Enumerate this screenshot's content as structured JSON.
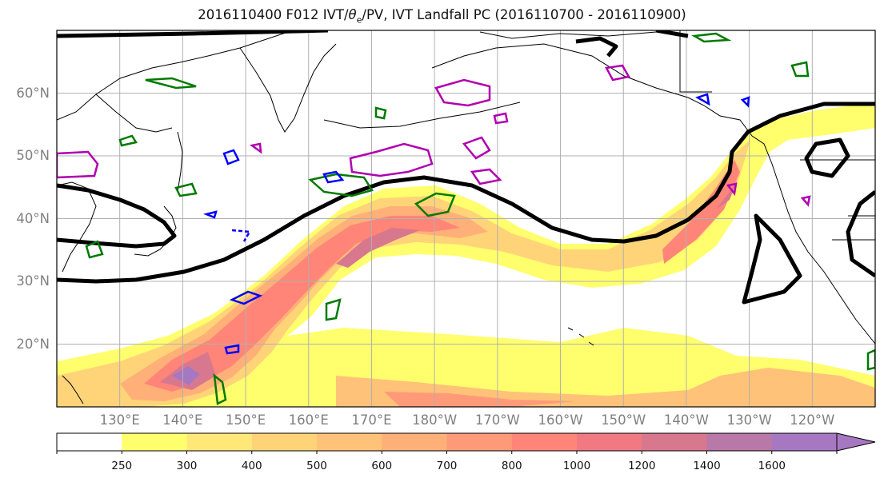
{
  "title": {
    "prefix": "2016110400 F012 IVT/",
    "theta_symbol": "θ",
    "theta_subscript": "e",
    "suffix": "/PV, IVT Landfall PC (2016110700 - 2016110900)"
  },
  "map": {
    "projection": "equirectangular",
    "lon_range": [
      120,
      250
    ],
    "lat_range": [
      10,
      70
    ],
    "grid": true,
    "lat_labels": [
      {
        "lat": 60,
        "text": "60°N"
      },
      {
        "lat": 50,
        "text": "50°N"
      },
      {
        "lat": 40,
        "text": "40°N"
      },
      {
        "lat": 30,
        "text": "30°N"
      },
      {
        "lat": 20,
        "text": "20°N"
      }
    ],
    "lon_labels": [
      {
        "lon": 130,
        "text": "130°E"
      },
      {
        "lon": 140,
        "text": "140°E"
      },
      {
        "lon": 150,
        "text": "150°E"
      },
      {
        "lon": 160,
        "text": "160°E"
      },
      {
        "lon": 170,
        "text": "170°E"
      },
      {
        "lon": 180,
        "text": "180°W"
      },
      {
        "lon": 190,
        "text": "170°W"
      },
      {
        "lon": 200,
        "text": "160°W"
      },
      {
        "lon": 210,
        "text": "150°W"
      },
      {
        "lon": 220,
        "text": "140°W"
      },
      {
        "lon": 230,
        "text": "130°W"
      },
      {
        "lon": 240,
        "text": "120°W"
      }
    ],
    "contour_colors": {
      "theta_e": "#000000",
      "pv": "#007a00",
      "pv_neg": "#0000ff",
      "ivt_pc": "#b000b0"
    }
  },
  "colorbar": {
    "levels": [
      {
        "label": "",
        "color": "#ffffff"
      },
      {
        "label": "250",
        "color": "#ffff6e"
      },
      {
        "label": "300",
        "color": "#ffe878"
      },
      {
        "label": "400",
        "color": "#ffd478"
      },
      {
        "label": "500",
        "color": "#ffc278"
      },
      {
        "label": "600",
        "color": "#ffb078"
      },
      {
        "label": "700",
        "color": "#ff9a78"
      },
      {
        "label": "800",
        "color": "#ff8578"
      },
      {
        "label": "1000",
        "color": "#f17a82"
      },
      {
        "label": "1200",
        "color": "#d8788e"
      },
      {
        "label": "1400",
        "color": "#b878a8"
      },
      {
        "label": "1600",
        "color": "#a778c2"
      }
    ],
    "extend": "max"
  }
}
